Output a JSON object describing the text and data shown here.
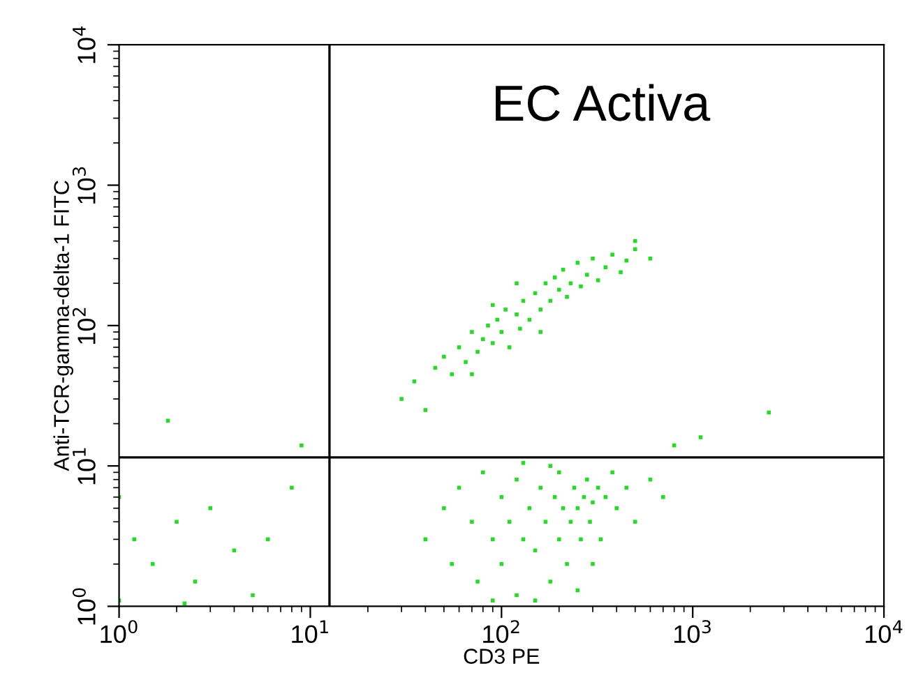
{
  "chart_data": {
    "type": "scatter",
    "xlabel": "CD3 PE",
    "ylabel": "Anti-TCR-gamma-delta-1 FITC",
    "annotations": [
      "EC Activa"
    ],
    "log": "xy",
    "grid": false,
    "marker": "square",
    "xlim": [
      1,
      10000
    ],
    "ylim": [
      1,
      10000
    ],
    "xticks": [
      {
        "value": 1,
        "label": "10$^{0}$"
      },
      {
        "value": 10,
        "label": "10$^{1}$"
      },
      {
        "value": 100,
        "label": "10$^{2}$"
      },
      {
        "value": 1000,
        "label": "10$^{3}$"
      },
      {
        "value": 10000,
        "label": "10$^{4}$"
      }
    ],
    "yticks": [
      {
        "value": 1,
        "label": "10$^{0}$"
      },
      {
        "value": 10,
        "label": "10$^{1}$"
      },
      {
        "value": 100,
        "label": "10$^{2}$"
      },
      {
        "value": 1000,
        "label": "10$^{3}$"
      },
      {
        "value": 10000,
        "label": "10$^{4}$"
      }
    ],
    "ref_lines": [
      {
        "axis": "x",
        "value": 12.6,
        "color": "#000000"
      },
      {
        "axis": "y",
        "value": 11.5,
        "color": "#000000"
      }
    ],
    "series": [
      {
        "color": "#22dd22",
        "x": [
          30,
          35,
          40,
          45,
          50,
          55,
          60,
          65,
          70,
          75,
          80,
          85,
          90,
          95,
          100,
          105,
          110,
          120,
          125,
          130,
          140,
          150,
          160,
          170,
          180,
          190,
          200,
          210,
          220,
          230,
          250,
          260,
          280,
          300,
          320,
          350,
          380,
          420,
          450,
          500,
          600,
          160,
          120,
          70,
          90,
          40,
          50,
          55,
          60,
          70,
          75,
          80,
          90,
          100,
          100,
          110,
          120,
          120,
          130,
          140,
          150,
          160,
          170,
          180,
          190,
          200,
          200,
          210,
          220,
          230,
          240,
          250,
          260,
          270,
          280,
          290,
          300,
          320,
          330,
          350,
          380,
          400,
          450,
          500,
          600,
          700,
          150,
          250,
          90,
          300,
          180,
          130,
          1,
          1.2,
          1.5,
          2,
          2.5,
          3,
          4,
          5,
          6,
          8,
          1,
          1.8,
          9,
          2.2,
          2500,
          800,
          1100,
          500
        ],
        "values": [
          30,
          40,
          25,
          50,
          60,
          45,
          70,
          55,
          90,
          65,
          80,
          100,
          75,
          110,
          90,
          130,
          70,
          120,
          95,
          150,
          110,
          170,
          130,
          200,
          150,
          220,
          180,
          250,
          160,
          200,
          280,
          190,
          230,
          300,
          210,
          260,
          320,
          240,
          290,
          350,
          300,
          90,
          200,
          45,
          140,
          3,
          5,
          2,
          7,
          4,
          1.5,
          9,
          3,
          6,
          2,
          4,
          8,
          1.2,
          3,
          5,
          2.5,
          7,
          4,
          1.5,
          6,
          3,
          9,
          5,
          2,
          4,
          7,
          5,
          3,
          6,
          8,
          4,
          5.5,
          7,
          3,
          6,
          9,
          5,
          7,
          4,
          8,
          6,
          1.1,
          1.3,
          1.1,
          2,
          10,
          10.5,
          1.1,
          3,
          2,
          4,
          1.5,
          5,
          2.5,
          1.2,
          3,
          7,
          6,
          21,
          14,
          1.05,
          24,
          14,
          16,
          400
        ]
      }
    ]
  }
}
